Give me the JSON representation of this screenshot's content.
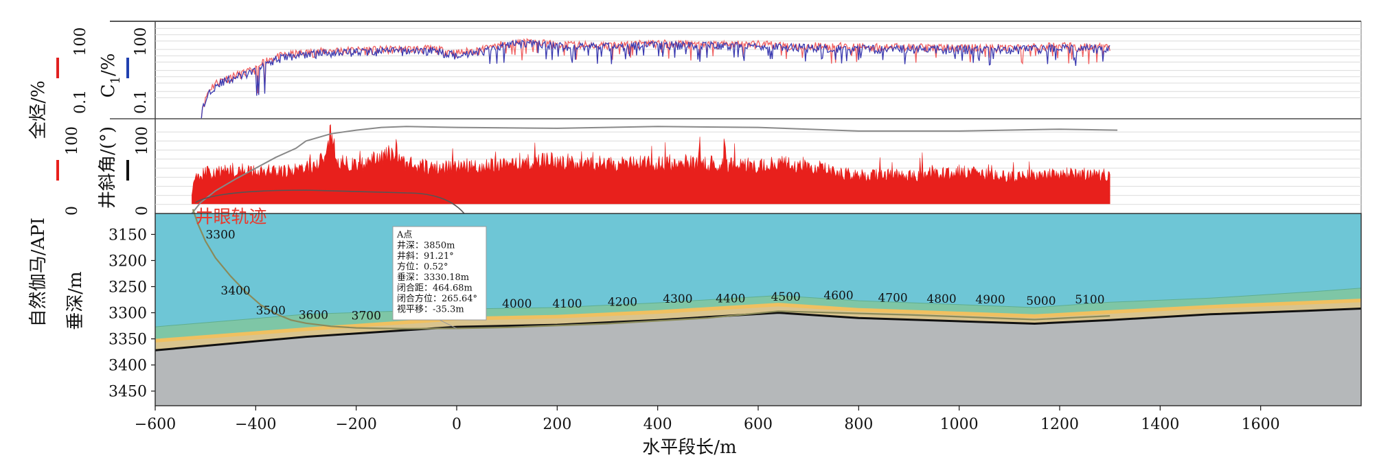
{
  "chart_data": {
    "type": "well-log-profile",
    "xlabel": "水平段长/m",
    "x_ticks": [
      -600,
      -400,
      -200,
      0,
      200,
      400,
      600,
      800,
      1000,
      1200,
      1400,
      1600
    ],
    "xlim": [
      -600,
      1800
    ],
    "panels": {
      "gas": {
        "left_label": "全烃/%",
        "left_ticks": [
          "0.1",
          "100"
        ],
        "c1_label": "C",
        "c1_subscript": "1",
        "c1_unit": "/%",
        "right_ticks": [
          "0.1",
          "100"
        ],
        "scale": "log",
        "ylim": [
          0.01,
          300
        ],
        "total_hydrocarbon_color": "#f06060",
        "c1_color": "#3a3ab0",
        "total_hydrocarbon_legend_color": "#e02020",
        "c1_legend_color": "#2040b0",
        "profile": {
          "x": [
            -508,
            -500,
            -480,
            -450,
            -420,
            -395,
            -380,
            -360,
            -330,
            -300,
            -250,
            -150,
            -50,
            0,
            50,
            100,
            150,
            200,
            300,
            400,
            500,
            600,
            700,
            800,
            900,
            1000,
            1100,
            1200,
            1300
          ],
          "total": [
            0.02,
            0.08,
            0.5,
            1.0,
            1.6,
            2.5,
            6,
            9,
            12,
            14,
            18,
            20,
            22,
            14,
            20,
            40,
            45,
            35,
            32,
            40,
            38,
            36,
            30,
            28,
            26,
            25,
            25,
            30,
            26
          ],
          "c1": [
            0.015,
            0.06,
            0.4,
            0.8,
            1.3,
            2.0,
            5,
            7,
            10,
            12,
            15,
            17,
            18,
            11,
            17,
            35,
            40,
            30,
            28,
            34,
            32,
            30,
            25,
            22,
            22,
            21,
            21,
            24,
            22
          ]
        }
      },
      "gamma": {
        "left_label": "自然伽马/API",
        "left_ticks": [
          "0",
          "100"
        ],
        "ylim_left": [
          0,
          100
        ],
        "incl_label": "井斜角/(°)",
        "right_ticks": [
          "0",
          "100"
        ],
        "ylim_right": [
          0,
          100
        ],
        "gamma_color": "#e8201c",
        "incl_color": "#888888",
        "incl_legend_color": "#111111",
        "gamma_profile": {
          "x": [
            -527,
            -520,
            -500,
            -480,
            -450,
            -400,
            -350,
            -300,
            -280,
            -260,
            -250,
            -240,
            -230,
            -220,
            -200,
            -150,
            -120,
            -100,
            -50,
            0,
            100,
            200,
            300,
            400,
            500,
            600,
            650,
            700,
            750,
            800,
            900,
            1000,
            1100,
            1200,
            1300
          ],
          "y": [
            25,
            38,
            45,
            44,
            48,
            47,
            46,
            50,
            55,
            62,
            92,
            65,
            56,
            55,
            54,
            60,
            70,
            55,
            50,
            52,
            55,
            58,
            54,
            56,
            55,
            52,
            55,
            54,
            45,
            42,
            42,
            46,
            40,
            44,
            42
          ]
        },
        "inclination_profile": {
          "x": [
            -527,
            -510,
            -480,
            -440,
            -400,
            -360,
            -320,
            -300,
            -250,
            -200,
            -150,
            -100,
            0,
            200,
            400,
            600,
            800,
            1000,
            1200,
            1315
          ],
          "y": [
            0,
            12,
            25,
            38,
            50,
            62,
            72,
            80,
            88,
            92,
            95,
            96,
            95,
            94,
            96,
            95,
            91,
            91,
            93,
            92
          ]
        }
      },
      "profile": {
        "ylabel": "垂深/m",
        "y_ticks": [
          3150,
          3200,
          3250,
          3300,
          3350,
          3400,
          3450
        ],
        "ylim": [
          3110,
          3478
        ],
        "trajectory_label": "井眼轨迹",
        "colors": {
          "upper_layer": "#6ec6d6",
          "green_layer": "#7ec6a6",
          "thin_layer": "#f0c060",
          "lower_layer": "#b5b8ba",
          "trajectory": "#8a8a5a",
          "trajectory_label": "#e83a2e"
        },
        "boundaries": {
          "x": [
            -600,
            -300,
            0,
            200,
            400,
            640,
            800,
            1150,
            1300,
            1500,
            1700,
            1800
          ],
          "green_top": [
            3327,
            3303,
            3293,
            3290,
            3281,
            3267,
            3277,
            3290,
            3280,
            3272,
            3260,
            3253
          ],
          "orange": [
            3355,
            3333,
            3313,
            3309,
            3300,
            3286,
            3296,
            3308,
            3300,
            3290,
            3282,
            3278
          ],
          "black": [
            3372,
            3346,
            3327,
            3323,
            3314,
            3300,
            3310,
            3321,
            3314,
            3303,
            3296,
            3292
          ]
        },
        "trajectory": {
          "x": [
            -525,
            -515,
            -500,
            -480,
            -450,
            -420,
            -390,
            -360,
            -330,
            -300,
            -250,
            -200,
            -150,
            -100,
            0,
            100,
            300,
            500,
            640,
            900,
            1150,
            1300
          ],
          "tvd": [
            3102,
            3130,
            3163,
            3195,
            3230,
            3260,
            3285,
            3302,
            3314,
            3320,
            3326,
            3329,
            3330,
            3330.5,
            3330,
            3328,
            3321,
            3310,
            3297,
            3304,
            3313,
            3306
          ]
        },
        "md_labels": [
          {
            "text": "3300",
            "x": -470,
            "tvd": 3158
          },
          {
            "text": "3400",
            "x": -440,
            "tvd": 3265
          },
          {
            "text": "3500",
            "x": -370,
            "tvd": 3303
          },
          {
            "text": "3600",
            "x": -285,
            "tvd": 3312
          },
          {
            "text": "3700",
            "x": -180,
            "tvd": 3313
          },
          {
            "text": "4000",
            "x": 120,
            "tvd": 3290
          },
          {
            "text": "4100",
            "x": 220,
            "tvd": 3290
          },
          {
            "text": "4200",
            "x": 330,
            "tvd": 3287
          },
          {
            "text": "4300",
            "x": 440,
            "tvd": 3281
          },
          {
            "text": "4400",
            "x": 545,
            "tvd": 3280
          },
          {
            "text": "4500",
            "x": 655,
            "tvd": 3277
          },
          {
            "text": "4600",
            "x": 760,
            "tvd": 3274
          },
          {
            "text": "4700",
            "x": 868,
            "tvd": 3279
          },
          {
            "text": "4800",
            "x": 965,
            "tvd": 3281
          },
          {
            "text": "4900",
            "x": 1062,
            "tvd": 3282
          },
          {
            "text": "5000",
            "x": 1163,
            "tvd": 3285
          },
          {
            "text": "5100",
            "x": 1260,
            "tvd": 3282
          }
        ],
        "point_a": {
          "x": 0,
          "tvd": 3330,
          "lines": [
            "A点",
            "井深：3850m",
            "井斜：91.21°",
            "方位：0.52°",
            "垂深：3330.18m",
            "闭合距：464.68m",
            "闭合方位：265.64°",
            "视平移：-35.3m"
          ]
        }
      }
    }
  }
}
